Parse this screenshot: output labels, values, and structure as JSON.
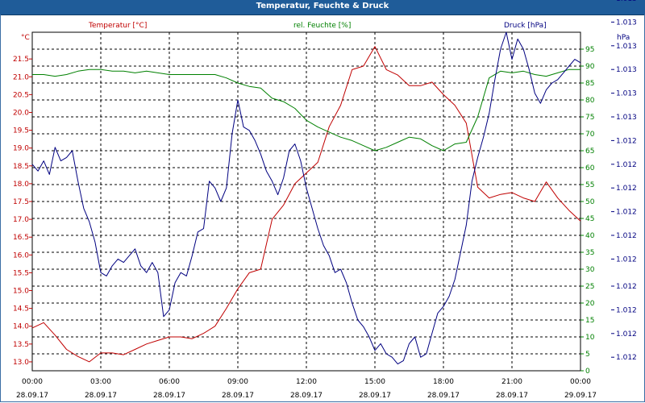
{
  "window": {
    "title": "Temperatur, Feuchte & Druck"
  },
  "chart_data": {
    "type": "line",
    "title": "Temperatur, Feuchte & Druck",
    "x_ticks": [
      {
        "time": "00:00",
        "date": "28.09.17"
      },
      {
        "time": "03:00",
        "date": "28.09.17"
      },
      {
        "time": "06:00",
        "date": "28.09.17"
      },
      {
        "time": "09:00",
        "date": "28.09.17"
      },
      {
        "time": "12:00",
        "date": "28.09.17"
      },
      {
        "time": "15:00",
        "date": "28.09.17"
      },
      {
        "time": "18:00",
        "date": "28.09.17"
      },
      {
        "time": "21:00",
        "date": "28.09.17"
      },
      {
        "time": "00:00",
        "date": "29.09.17"
      }
    ],
    "x_range_hours": [
      0,
      24
    ],
    "axes": {
      "temperature": {
        "unit": "°C",
        "min": 12.75,
        "max": 22.25,
        "color": "#c00000",
        "ticks": [
          "13.0",
          "13.5",
          "14.0",
          "14.5",
          "15.0",
          "15.5",
          "16.0",
          "16.5",
          "17.0",
          "17.5",
          "18.0",
          "18.5",
          "19.0",
          "19.5",
          "20.0",
          "20.5",
          "21.0",
          "21.5"
        ],
        "tick_values": [
          13.0,
          13.5,
          14.0,
          14.5,
          15.0,
          15.5,
          16.0,
          16.5,
          17.0,
          17.5,
          18.0,
          18.5,
          19.0,
          19.5,
          20.0,
          20.5,
          21.0,
          21.5
        ]
      },
      "humidity": {
        "unit": "%",
        "min": 0,
        "max": 100,
        "color": "#008000",
        "ticks": [
          "0",
          "5",
          "10",
          "15",
          "20",
          "25",
          "30",
          "35",
          "40",
          "45",
          "50",
          "55",
          "60",
          "65",
          "70",
          "75",
          "80",
          "85",
          "90",
          "95"
        ],
        "tick_values": [
          0,
          5,
          10,
          15,
          20,
          25,
          30,
          35,
          40,
          45,
          50,
          55,
          60,
          65,
          70,
          75,
          80,
          85,
          90,
          95
        ]
      },
      "pressure": {
        "unit": "hPa",
        "min": 0,
        "max": 1,
        "color": "#000080",
        "ticks": [
          "1.012",
          "1.012",
          "1.012",
          "1.012",
          "1.012",
          "1.012",
          "1.012",
          "1.012",
          "1.012",
          "1.012",
          "1.013",
          "1.013",
          "1.013",
          "1.013",
          "1.013",
          "1.013"
        ],
        "tick_positions": [
          0.04,
          0.11,
          0.18,
          0.25,
          0.33,
          0.4,
          0.47,
          0.54,
          0.61,
          0.68,
          0.75,
          0.82,
          0.89,
          0.96,
          1.03,
          1.1
        ]
      }
    },
    "legend": {
      "temperature": "Temperatur [°C]",
      "humidity": "rel. Feuchte [%]",
      "pressure": "Druck [hPa]"
    },
    "series": [
      {
        "name": "Temperatur [°C]",
        "axis": "temperature",
        "color": "#c00000",
        "x": [
          0,
          0.5,
          1,
          1.5,
          2,
          2.5,
          3,
          3.5,
          4,
          4.5,
          5,
          5.5,
          6,
          6.5,
          7,
          7.5,
          8,
          8.5,
          9,
          9.5,
          10,
          10.5,
          11,
          11.5,
          12,
          12.5,
          13,
          13.5,
          14,
          14.5,
          15,
          15.5,
          16,
          16.5,
          17,
          17.5,
          18,
          18.5,
          19,
          19.5,
          20,
          20.5,
          21,
          21.5,
          22,
          22.5,
          23,
          23.5,
          24
        ],
        "values": [
          13.95,
          14.1,
          13.75,
          13.35,
          13.15,
          13.0,
          13.25,
          13.25,
          13.2,
          13.35,
          13.5,
          13.6,
          13.7,
          13.7,
          13.65,
          13.8,
          14.0,
          14.5,
          15.05,
          15.5,
          15.6,
          17.0,
          17.4,
          18.0,
          18.3,
          18.6,
          19.6,
          20.2,
          21.2,
          21.3,
          21.85,
          21.2,
          21.05,
          20.75,
          20.75,
          20.85,
          20.5,
          20.2,
          19.7,
          17.9,
          17.6,
          17.7,
          17.75,
          17.6,
          17.5,
          18.05,
          17.6,
          17.25,
          16.95
        ]
      },
      {
        "name": "rel. Feuchte [%]",
        "axis": "humidity",
        "color": "#008000",
        "x": [
          0,
          0.5,
          1,
          1.5,
          2,
          2.5,
          3,
          3.5,
          4,
          4.5,
          5,
          5.5,
          6,
          6.5,
          7,
          7.5,
          8,
          8.5,
          9,
          9.5,
          10,
          10.5,
          11,
          11.5,
          12,
          12.5,
          13,
          13.5,
          14,
          14.5,
          15,
          15.5,
          16,
          16.5,
          17,
          17.5,
          18,
          18.5,
          19,
          19.5,
          20,
          20.5,
          21,
          21.5,
          22,
          22.5,
          23,
          23.5,
          24
        ],
        "values": [
          87.5,
          87.5,
          87.0,
          87.5,
          88.5,
          89.0,
          89.0,
          88.5,
          88.5,
          88.0,
          88.5,
          88.0,
          87.5,
          87.5,
          87.5,
          87.5,
          87.5,
          86.5,
          85.0,
          84.0,
          83.5,
          80.5,
          79.5,
          77.5,
          74.0,
          72.0,
          70.5,
          69.0,
          68.0,
          66.5,
          65.0,
          66.0,
          67.5,
          69.0,
          68.5,
          66.5,
          65.0,
          67.0,
          67.5,
          75.0,
          86.5,
          88.5,
          88.0,
          88.5,
          87.5,
          87.0,
          88.0,
          89.0,
          89.0
        ]
      },
      {
        "name": "Druck [hPa]",
        "axis": "pressure",
        "color": "#000080",
        "x": [
          0,
          0.25,
          0.5,
          0.75,
          1,
          1.25,
          1.5,
          1.75,
          2,
          2.25,
          2.5,
          2.75,
          3,
          3.25,
          3.5,
          3.75,
          4,
          4.25,
          4.5,
          4.75,
          5,
          5.25,
          5.5,
          5.75,
          6,
          6.25,
          6.5,
          6.75,
          7,
          7.25,
          7.5,
          7.75,
          8,
          8.25,
          8.5,
          8.75,
          9,
          9.25,
          9.5,
          9.75,
          10,
          10.25,
          10.5,
          10.75,
          11,
          11.25,
          11.5,
          11.75,
          12,
          12.25,
          12.5,
          12.75,
          13,
          13.25,
          13.5,
          13.75,
          14,
          14.25,
          14.5,
          14.75,
          15,
          15.25,
          15.5,
          15.75,
          16,
          16.25,
          16.5,
          16.75,
          17,
          17.25,
          17.5,
          17.75,
          18,
          18.25,
          18.5,
          18.75,
          19,
          19.25,
          19.5,
          19.75,
          20,
          20.25,
          20.5,
          20.75,
          21,
          21.25,
          21.5,
          21.75,
          22,
          22.25,
          22.5,
          22.75,
          23,
          23.25,
          23.5,
          23.75,
          24
        ],
        "values": [
          0.61,
          0.59,
          0.62,
          0.58,
          0.66,
          0.62,
          0.63,
          0.65,
          0.56,
          0.48,
          0.44,
          0.38,
          0.29,
          0.28,
          0.31,
          0.33,
          0.32,
          0.34,
          0.36,
          0.31,
          0.29,
          0.32,
          0.29,
          0.16,
          0.18,
          0.26,
          0.29,
          0.28,
          0.34,
          0.41,
          0.42,
          0.56,
          0.54,
          0.5,
          0.54,
          0.7,
          0.8,
          0.72,
          0.71,
          0.68,
          0.64,
          0.59,
          0.56,
          0.52,
          0.57,
          0.65,
          0.67,
          0.62,
          0.54,
          0.48,
          0.42,
          0.37,
          0.34,
          0.29,
          0.3,
          0.26,
          0.2,
          0.15,
          0.13,
          0.1,
          0.06,
          0.08,
          0.05,
          0.04,
          0.02,
          0.03,
          0.08,
          0.1,
          0.04,
          0.05,
          0.11,
          0.17,
          0.19,
          0.22,
          0.27,
          0.35,
          0.43,
          0.56,
          0.63,
          0.69,
          0.76,
          0.86,
          0.95,
          1.0,
          0.92,
          0.98,
          0.95,
          0.89,
          0.82,
          0.79,
          0.83,
          0.85,
          0.86,
          0.88,
          0.9,
          0.92,
          0.91
        ]
      }
    ]
  }
}
